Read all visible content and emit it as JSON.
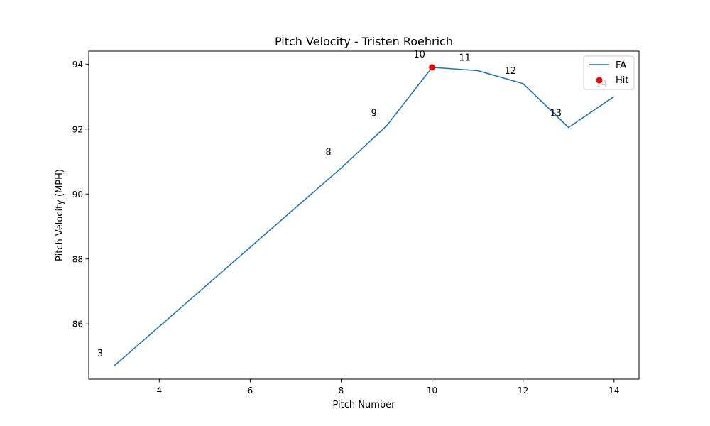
{
  "chart_data": {
    "type": "line",
    "title": "Pitch Velocity - Tristen Roehrich",
    "xlabel": "Pitch Number",
    "ylabel": "Pitch Velocity (MPH)",
    "xlim": [
      2.45,
      14.55
    ],
    "ylim": [
      84.3,
      94.4
    ],
    "xticks": [
      4,
      6,
      8,
      10,
      12,
      14
    ],
    "yticks": [
      86,
      88,
      90,
      92,
      94
    ],
    "grid": false,
    "legend_position": "top-right",
    "series": [
      {
        "name": "FA",
        "color": "#1f77b4",
        "x": [
          3,
          8,
          9,
          10,
          11,
          12,
          13,
          14
        ],
        "y": [
          84.7,
          90.8,
          92.1,
          93.9,
          93.8,
          93.4,
          92.05,
          93.0
        ]
      }
    ],
    "hits": {
      "name": "Hit",
      "color": "#ff0000",
      "x": [
        10
      ],
      "y": [
        93.9
      ]
    },
    "point_labels": [
      {
        "text": "3",
        "x": 2.7,
        "y": 85.0
      },
      {
        "text": "8",
        "x": 7.72,
        "y": 91.2
      },
      {
        "text": "9",
        "x": 8.72,
        "y": 92.4
      },
      {
        "text": "10",
        "x": 9.72,
        "y": 94.2
      },
      {
        "text": "11",
        "x": 10.72,
        "y": 94.1
      },
      {
        "text": "12",
        "x": 11.72,
        "y": 93.7
      },
      {
        "text": "13",
        "x": 12.72,
        "y": 92.4
      },
      {
        "text": "14",
        "x": 13.72,
        "y": 93.3
      }
    ]
  }
}
